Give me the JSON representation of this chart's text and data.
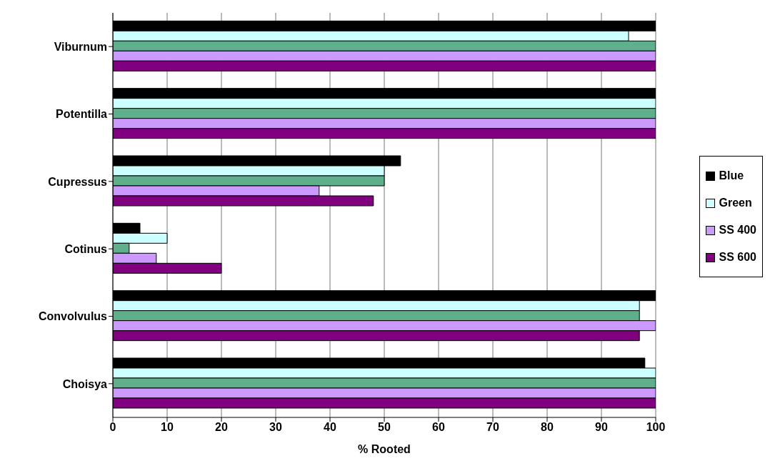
{
  "chart_data": {
    "type": "bar",
    "orientation": "horizontal",
    "categories": [
      "Viburnum",
      "Potentilla",
      "Cupressus",
      "Cotinus",
      "Convolvulus",
      "Choisya"
    ],
    "series": [
      {
        "name": "Blue",
        "color": "#000000",
        "values": [
          100,
          100,
          53,
          5,
          100,
          98
        ]
      },
      {
        "name": "Green",
        "color": "#ccffff",
        "values": [
          95,
          100,
          50,
          10,
          97,
          100
        ]
      },
      {
        "color": "#5fae8c",
        "values": [
          100,
          100,
          50,
          3,
          97,
          100
        ]
      },
      {
        "name": "SS 400",
        "color": "#cc99ff",
        "values": [
          100,
          100,
          38,
          8,
          100,
          100
        ]
      },
      {
        "name": "SS 600",
        "color": "#800080",
        "values": [
          100,
          100,
          48,
          20,
          97,
          100
        ]
      }
    ],
    "xlabel": "% Rooted",
    "xlim": [
      0,
      100
    ],
    "xticks": [
      0,
      10,
      20,
      30,
      40,
      50,
      60,
      70,
      80,
      90,
      100
    ],
    "grid": "x",
    "legend": "right"
  }
}
